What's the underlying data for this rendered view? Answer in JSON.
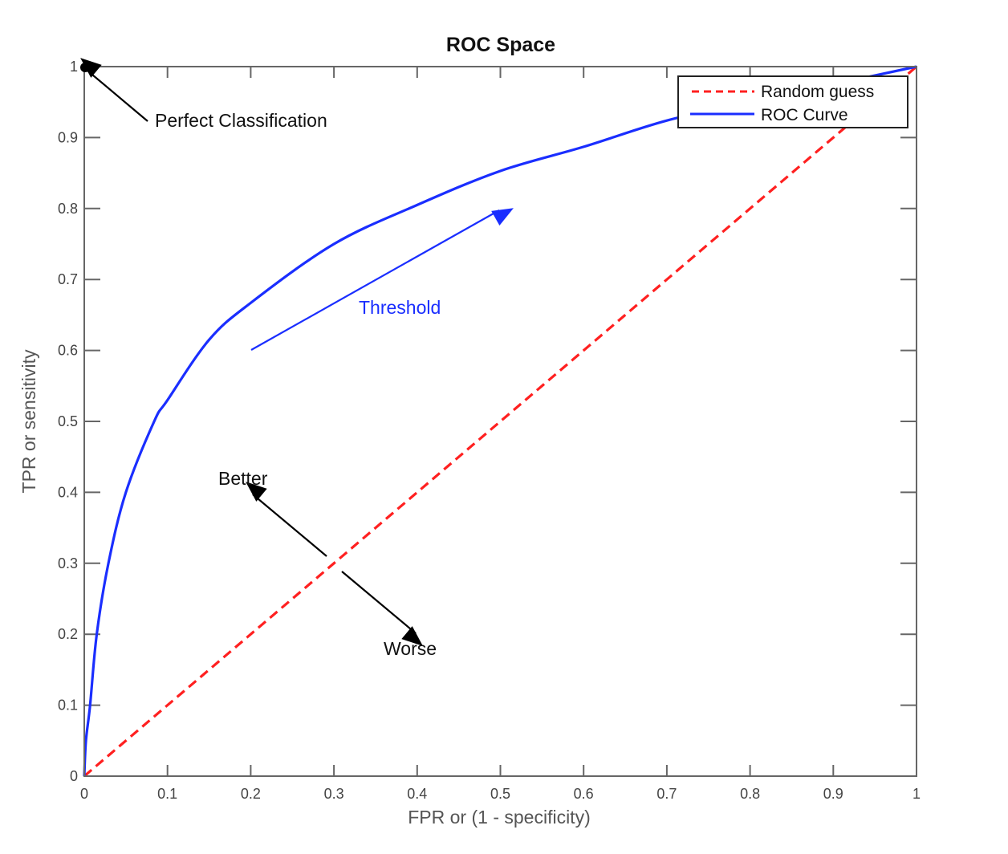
{
  "chart_data": {
    "type": "line",
    "title": "ROC Space",
    "xlabel": "FPR or (1 - specificity)",
    "ylabel": "TPR or sensitivity",
    "xlim": [
      0,
      1
    ],
    "ylim": [
      0,
      1
    ],
    "x_ticks": [
      "0",
      "0.1",
      "0.2",
      "0.3",
      "0.4",
      "0.5",
      "0.6",
      "0.7",
      "0.8",
      "0.9",
      "1"
    ],
    "y_ticks": [
      "0",
      "0.1",
      "0.2",
      "0.3",
      "0.4",
      "0.5",
      "0.6",
      "0.7",
      "0.8",
      "0.9",
      "1"
    ],
    "grid": false,
    "legend_position": "top-right",
    "series": [
      {
        "name": "Random guess",
        "color": "#ff2020",
        "style": "dashed",
        "x": [
          0,
          1
        ],
        "y": [
          0,
          1
        ]
      },
      {
        "name": "ROC Curve",
        "color": "#1a2eff",
        "style": "solid",
        "x": [
          0,
          0.002,
          0.007,
          0.015,
          0.029,
          0.05,
          0.084,
          0.1,
          0.15,
          0.2,
          0.3,
          0.4,
          0.5,
          0.6,
          0.7,
          0.8,
          0.9,
          1
        ],
        "y": [
          0,
          0.05,
          0.1,
          0.2,
          0.3,
          0.4,
          0.5,
          0.53,
          0.615,
          0.667,
          0.75,
          0.805,
          0.853,
          0.887,
          0.924,
          0.95,
          0.975,
          1
        ]
      }
    ],
    "annotations": {
      "perfect": "Perfect Classification",
      "threshold": "Threshold",
      "better": "Better",
      "worse": "Worse"
    },
    "colors": {
      "threshold": "#1a2eff",
      "axes": "#666666"
    }
  }
}
